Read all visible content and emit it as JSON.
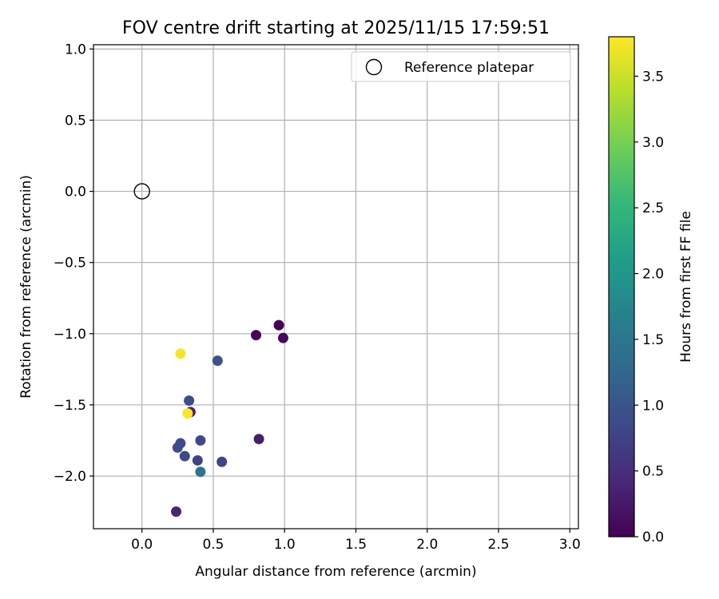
{
  "chart_data": {
    "type": "scatter",
    "title": "FOV centre drift starting at 2025/11/15 17:59:51",
    "xlabel": "Angular distance from reference (arcmin)",
    "ylabel": "Rotation from reference (arcmin)",
    "xlim": [
      -0.34,
      3.06
    ],
    "ylim": [
      -2.37,
      1.03
    ],
    "xticks": [
      0.0,
      0.5,
      1.0,
      1.5,
      2.0,
      2.5,
      3.0
    ],
    "xtick_labels": [
      "0.0",
      "0.5",
      "1.0",
      "1.5",
      "2.0",
      "2.5",
      "3.0"
    ],
    "yticks": [
      -2.0,
      -1.5,
      -1.0,
      -0.5,
      0.0,
      0.5,
      1.0
    ],
    "ytick_labels": [
      "−2.0",
      "−1.5",
      "−1.0",
      "−0.5",
      "0.0",
      "0.5",
      "1.0"
    ],
    "grid": true,
    "legend": {
      "position": "upper right",
      "entries": [
        "Reference platepar"
      ]
    },
    "reference_point": {
      "name": "Reference platepar",
      "x": 0.0,
      "y": 0.0,
      "marker": "open-circle"
    },
    "colorbar": {
      "label": "Hours from first FF file",
      "colormap": "viridis",
      "range": [
        0.0,
        3.8
      ],
      "ticks": [
        0.0,
        0.5,
        1.0,
        1.5,
        2.0,
        2.5,
        3.0,
        3.5
      ],
      "tick_labels": [
        "0.0",
        "0.5",
        "1.0",
        "1.5",
        "2.0",
        "2.5",
        "3.0",
        "3.5"
      ]
    },
    "series": [
      {
        "name": "FOV centre",
        "points": [
          {
            "x": 0.96,
            "y": -0.94,
            "hours": 0.02
          },
          {
            "x": 0.8,
            "y": -1.01,
            "hours": 0.05
          },
          {
            "x": 0.99,
            "y": -1.03,
            "hours": 0.08
          },
          {
            "x": 0.82,
            "y": -1.74,
            "hours": 0.3
          },
          {
            "x": 0.34,
            "y": -1.55,
            "hours": 0.35
          },
          {
            "x": 0.24,
            "y": -2.25,
            "hours": 0.4
          },
          {
            "x": 0.39,
            "y": -1.89,
            "hours": 0.75
          },
          {
            "x": 0.56,
            "y": -1.9,
            "hours": 0.8
          },
          {
            "x": 0.41,
            "y": -1.75,
            "hours": 0.85
          },
          {
            "x": 0.3,
            "y": -1.86,
            "hours": 0.85
          },
          {
            "x": 0.25,
            "y": -1.8,
            "hours": 0.9
          },
          {
            "x": 0.27,
            "y": -1.77,
            "hours": 0.9
          },
          {
            "x": 0.33,
            "y": -1.47,
            "hours": 0.9
          },
          {
            "x": 0.53,
            "y": -1.19,
            "hours": 0.95
          },
          {
            "x": 0.41,
            "y": -1.97,
            "hours": 1.5
          },
          {
            "x": 0.27,
            "y": -1.14,
            "hours": 3.75
          },
          {
            "x": 0.32,
            "y": -1.56,
            "hours": 3.8
          }
        ]
      }
    ]
  }
}
